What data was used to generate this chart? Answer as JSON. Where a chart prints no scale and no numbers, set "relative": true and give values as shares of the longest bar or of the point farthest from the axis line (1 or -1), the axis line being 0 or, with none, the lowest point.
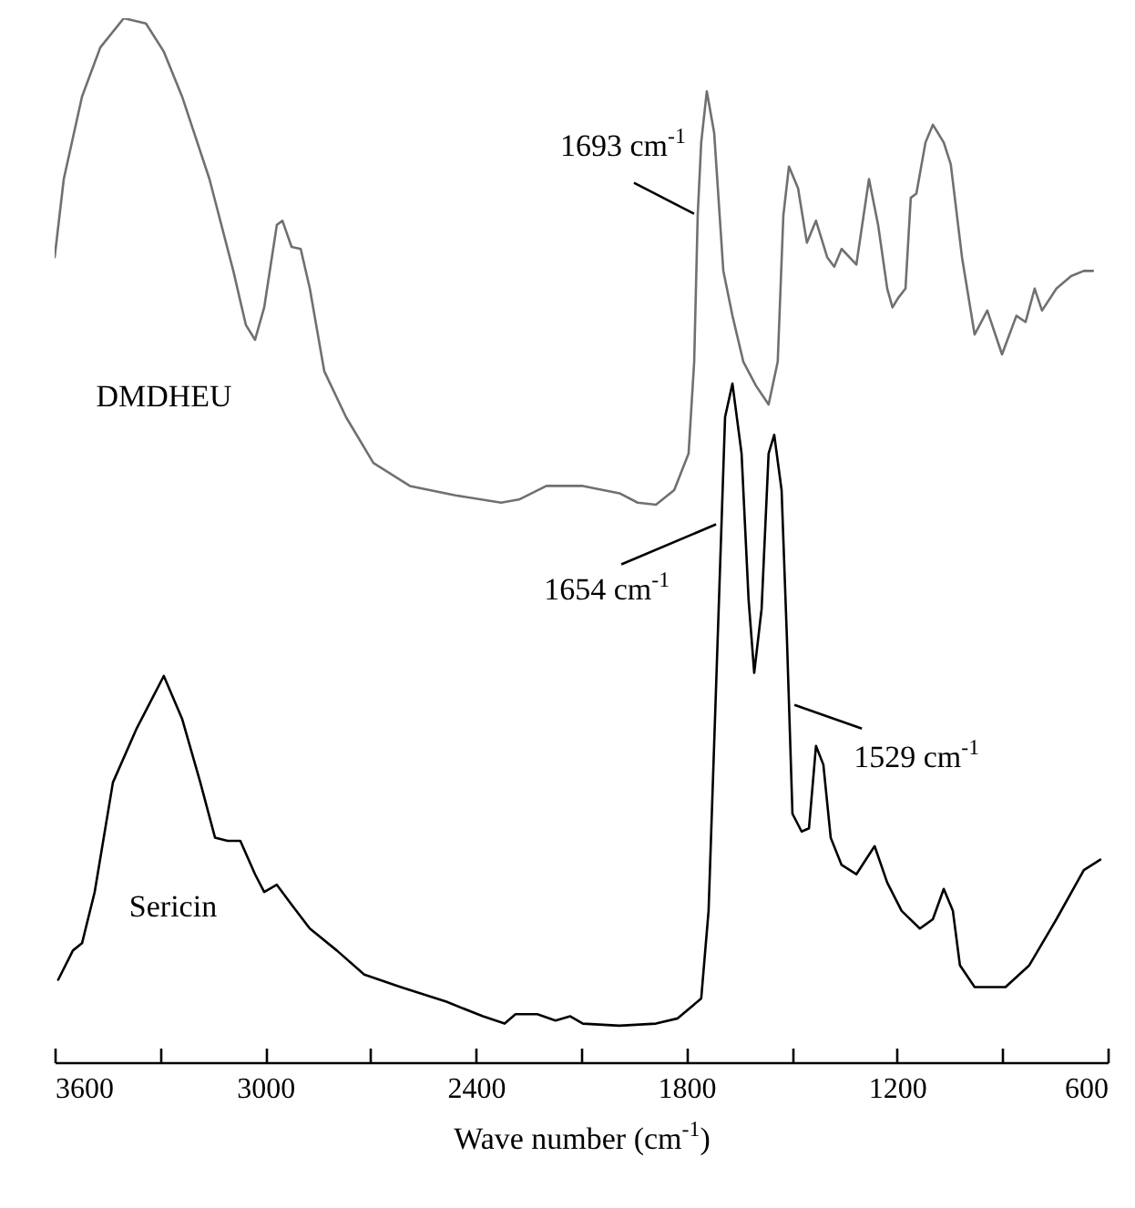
{
  "chart_data": {
    "type": "line",
    "relative": true,
    "xlabel": "Wave number (cm$^{-1}$)",
    "xlim": [
      3600,
      600
    ],
    "xticks": [
      3600,
      {
        "value": 3300,
        "label": null
      },
      3000,
      {
        "value": 2700,
        "label": null
      },
      2400,
      {
        "value": 2100,
        "label": null
      },
      1800,
      {
        "value": 1500,
        "label": null
      },
      1200,
      {
        "value": 900,
        "label": null
      },
      600
    ],
    "grid": false,
    "line_style": "solid",
    "marker": "none",
    "annotations": [
      {
        "text": "1693 cm$^{-1}$",
        "x": 1768,
        "y": 0.811
      },
      {
        "text": "1654 cm$^{-1}$",
        "x": 1700,
        "y": 0.517
      },
      {
        "text": "1529 cm$^{-1}$",
        "x": 1508,
        "y": 0.344
      }
    ],
    "series": [
      {
        "name": "DMDHEU",
        "color": "#707070",
        "x": [
          3600,
          3574,
          3522,
          3470,
          3403,
          3340,
          3289,
          3237,
          3159,
          3091,
          3055,
          3029,
          3003,
          2967,
          2951,
          2925,
          2899,
          2873,
          2832,
          2770,
          2692,
          2588,
          2458,
          2328,
          2277,
          2199,
          2095,
          1991,
          1939,
          1887,
          1835,
          1794,
          1778,
          1768,
          1758,
          1742,
          1721,
          1695,
          1669,
          1638,
          1602,
          1566,
          1540,
          1524,
          1508,
          1482,
          1457,
          1431,
          1399,
          1379,
          1358,
          1316,
          1280,
          1254,
          1228,
          1213,
          1197,
          1176,
          1161,
          1145,
          1119,
          1098,
          1067,
          1047,
          1015,
          979,
          943,
          901,
          860,
          834,
          808,
          787,
          746,
          704,
          668,
          642
        ],
        "values": [
          0.771,
          0.846,
          0.925,
          0.972,
          1.0,
          0.995,
          0.968,
          0.925,
          0.846,
          0.758,
          0.706,
          0.692,
          0.723,
          0.802,
          0.806,
          0.781,
          0.779,
          0.741,
          0.662,
          0.618,
          0.574,
          0.552,
          0.543,
          0.536,
          0.539,
          0.552,
          0.552,
          0.545,
          0.536,
          0.534,
          0.548,
          0.583,
          0.671,
          0.811,
          0.881,
          0.93,
          0.89,
          0.758,
          0.715,
          0.671,
          0.648,
          0.63,
          0.671,
          0.811,
          0.858,
          0.837,
          0.785,
          0.806,
          0.771,
          0.762,
          0.779,
          0.764,
          0.846,
          0.802,
          0.741,
          0.723,
          0.732,
          0.741,
          0.828,
          0.832,
          0.881,
          0.898,
          0.881,
          0.86,
          0.771,
          0.697,
          0.72,
          0.678,
          0.715,
          0.709,
          0.741,
          0.72,
          0.741,
          0.753,
          0.758,
          0.758
        ]
      },
      {
        "name": "Sericin",
        "color": "#000000",
        "x": [
          3590,
          3548,
          3522,
          3486,
          3434,
          3366,
          3289,
          3237,
          3185,
          3143,
          3107,
          3071,
          3029,
          3003,
          2967,
          2925,
          2873,
          2796,
          2718,
          2614,
          2484,
          2380,
          2318,
          2287,
          2225,
          2173,
          2131,
          2095,
          1991,
          1887,
          1825,
          1758,
          1737,
          1716,
          1690,
          1669,
          1643,
          1623,
          1607,
          1586,
          1566,
          1550,
          1529,
          1514,
          1498,
          1472,
          1451,
          1431,
          1410,
          1389,
          1358,
          1316,
          1264,
          1228,
          1187,
          1135,
          1098,
          1067,
          1041,
          1021,
          979,
          891,
          823,
          746,
          668,
          621
        ],
        "values": [
          0.079,
          0.107,
          0.114,
          0.163,
          0.268,
          0.32,
          0.37,
          0.329,
          0.268,
          0.215,
          0.212,
          0.212,
          0.18,
          0.163,
          0.17,
          0.151,
          0.128,
          0.107,
          0.084,
          0.072,
          0.058,
          0.044,
          0.037,
          0.046,
          0.046,
          0.04,
          0.044,
          0.037,
          0.035,
          0.037,
          0.042,
          0.061,
          0.145,
          0.356,
          0.618,
          0.65,
          0.583,
          0.443,
          0.373,
          0.434,
          0.583,
          0.601,
          0.548,
          0.408,
          0.238,
          0.221,
          0.224,
          0.303,
          0.285,
          0.215,
          0.189,
          0.18,
          0.207,
          0.172,
          0.145,
          0.128,
          0.137,
          0.166,
          0.145,
          0.093,
          0.072,
          0.072,
          0.093,
          0.137,
          0.184,
          0.194
        ]
      }
    ]
  }
}
